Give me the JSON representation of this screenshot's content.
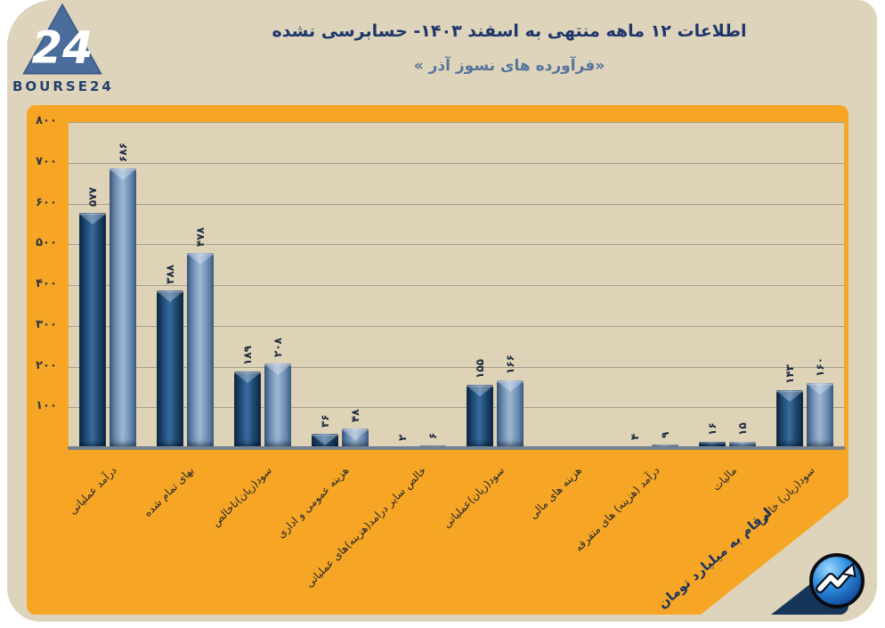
{
  "header": {
    "title": "اطلاعات ۱۲ ماهه منتهی به اسفند ۱۴۰۳- حسابرسی نشده",
    "subtitle": "«فرآورده های نسوز آذر »",
    "logo_text": "BOURSE24",
    "logo_number": "24"
  },
  "footer": {
    "unit_note": "ارقام به میلیارد تومان"
  },
  "colors": {
    "panel_orange": "#F6A624",
    "card_beige": "#DDD4BB",
    "plot_beige": "#DED3B7",
    "bar_dark": "#1D4971",
    "bar_light": "#7A99BE",
    "title_navy": "#20366B",
    "subtitle_blue": "#56749B",
    "corner_navy": "#173559"
  },
  "chart_data": {
    "type": "bar",
    "title": "اطلاعات ۱۲ ماهه منتهی به اسفند ۱۴۰۳- حسابرسی نشده",
    "subtitle": "«فرآورده های نسوز آذر »",
    "unit": "میلیارد تومان",
    "ylim": [
      0,
      800
    ],
    "grid": true,
    "legend": "none",
    "y_ticks": [
      {
        "v": 800,
        "label": "۸۰۰"
      },
      {
        "v": 700,
        "label": "۷۰۰"
      },
      {
        "v": 600,
        "label": "۶۰۰"
      },
      {
        "v": 500,
        "label": "۵۰۰"
      },
      {
        "v": 400,
        "label": "۴۰۰"
      },
      {
        "v": 300,
        "label": "۳۰۰"
      },
      {
        "v": 200,
        "label": "۲۰۰"
      },
      {
        "v": 100,
        "label": "۱۰۰"
      }
    ],
    "categories": [
      "درآمد عملیاتی",
      "بهای تمام شده",
      "سود(زیان)ناخالص",
      "هزینه عمومی و اداری",
      "خالص سایر درامد(هزینه)های عملیاتی",
      "سود(زیان)عملیاتی",
      "هزینه های مالی",
      "درآمد (هزینه) های متفرقه",
      "مالیات",
      "سود(زیان) خالص"
    ],
    "series": [
      {
        "name": "series-dark",
        "color": "#1D4971",
        "values": [
          577,
          388,
          189,
          36,
          2,
          155,
          null,
          4,
          16,
          143
        ],
        "labels": [
          "۵۷۷",
          "۳۸۸",
          "۱۸۹",
          "۳۶",
          "۲",
          "۱۵۵",
          "",
          "۴",
          "۱۶",
          "۱۴۳"
        ]
      },
      {
        "name": "series-light",
        "color": "#7A99BE",
        "values": [
          686,
          478,
          208,
          48,
          6,
          166,
          null,
          9,
          15,
          160
        ],
        "labels": [
          "۶۸۶",
          "۴۷۸",
          "۲۰۸",
          "۴۸",
          "۶",
          "۱۶۶",
          "",
          "۹",
          "۱۵",
          "۱۶۰"
        ]
      }
    ]
  }
}
